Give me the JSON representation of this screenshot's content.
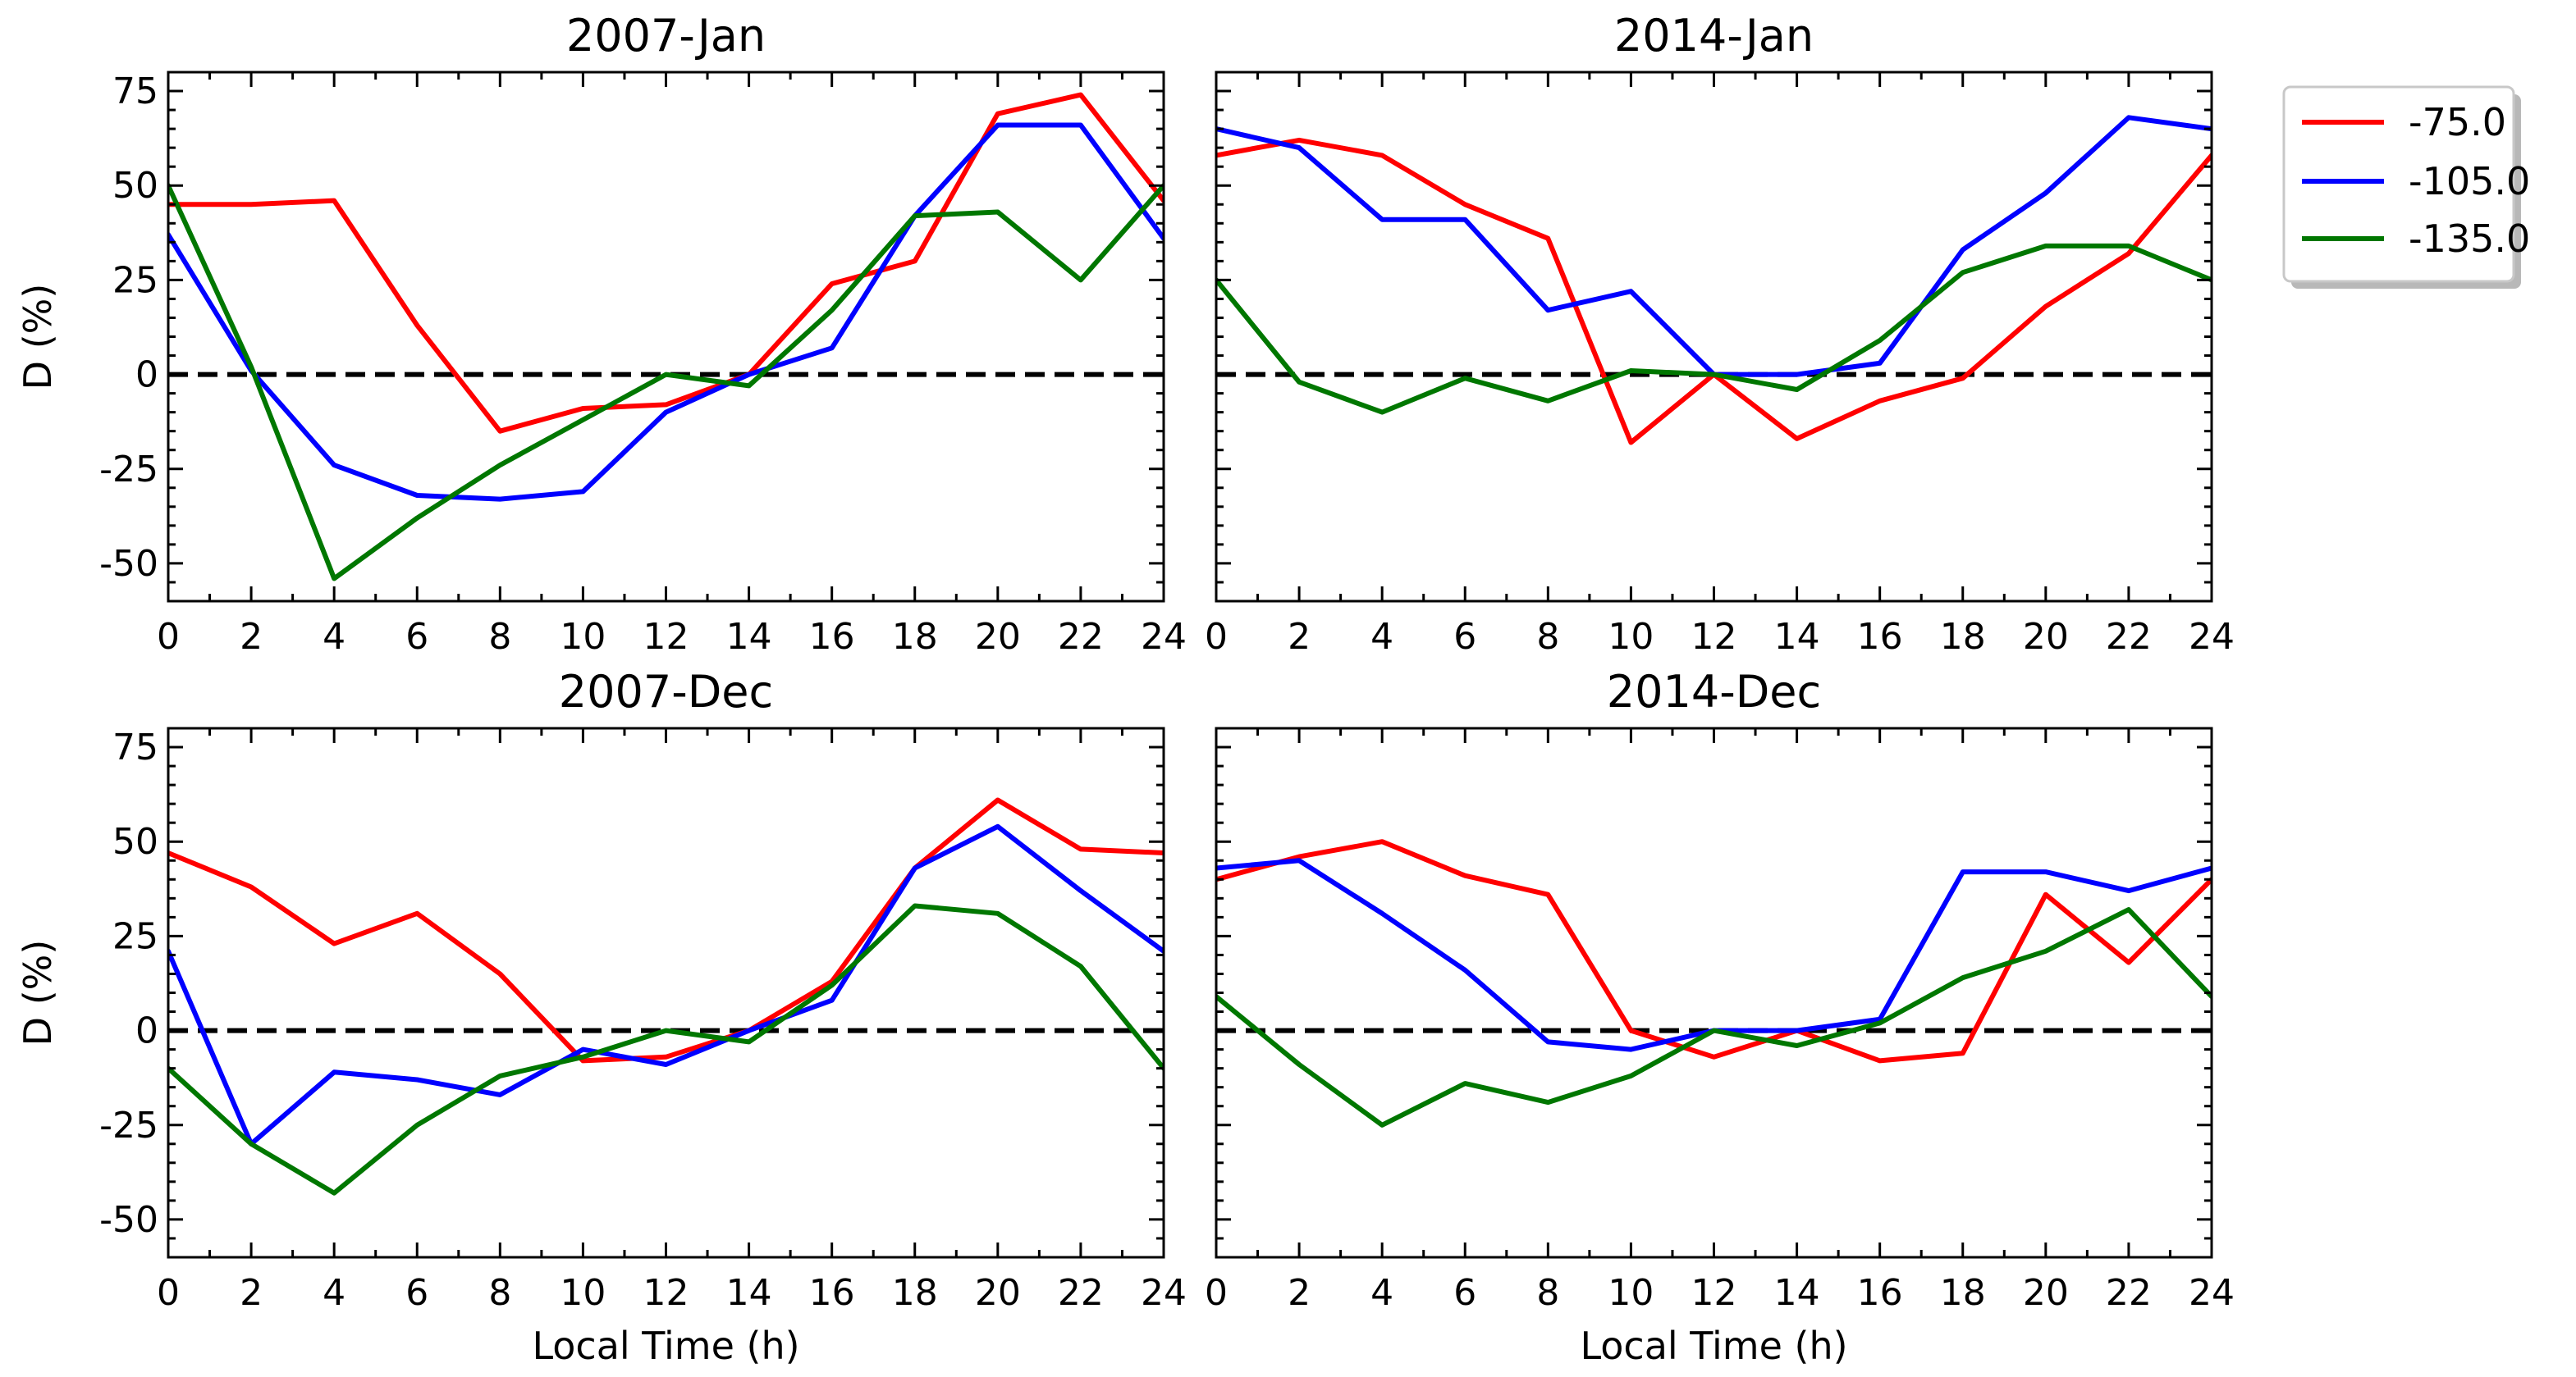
{
  "chart_data": [
    {
      "type": "line",
      "title": "2007-Jan",
      "xlabel": "",
      "ylabel": "D (%)",
      "xlim": [
        0,
        24
      ],
      "ylim": [
        -60,
        80
      ],
      "x": [
        0,
        2,
        4,
        6,
        8,
        10,
        12,
        14,
        16,
        18,
        20,
        22,
        24
      ],
      "series": [
        {
          "name": "-75.0",
          "color": "#ff0000",
          "values": [
            45,
            45,
            46,
            13,
            -15,
            -9,
            -8,
            0,
            24,
            30,
            69,
            74,
            46
          ]
        },
        {
          "name": "-105.0",
          "color": "#0000ff",
          "values": [
            37,
            1,
            -24,
            -32,
            -33,
            -31,
            -10,
            0,
            7,
            42,
            66,
            66,
            36
          ]
        },
        {
          "name": "-135.0",
          "color": "#007700",
          "values": [
            50,
            2,
            -54,
            -38,
            -24,
            -12,
            0,
            -3,
            17,
            42,
            43,
            25,
            50
          ]
        }
      ]
    },
    {
      "type": "line",
      "title": "2014-Jan",
      "xlabel": "",
      "ylabel": "",
      "xlim": [
        0,
        24
      ],
      "ylim": [
        -60,
        80
      ],
      "x": [
        0,
        2,
        4,
        6,
        8,
        10,
        12,
        14,
        16,
        18,
        20,
        22,
        24
      ],
      "series": [
        {
          "name": "-75.0",
          "color": "#ff0000",
          "values": [
            58,
            62,
            58,
            45,
            36,
            -18,
            0,
            -17,
            -7,
            -1,
            18,
            32,
            58
          ]
        },
        {
          "name": "-105.0",
          "color": "#0000ff",
          "values": [
            65,
            60,
            41,
            41,
            17,
            22,
            0,
            0,
            3,
            33,
            48,
            68,
            65
          ]
        },
        {
          "name": "-135.0",
          "color": "#007700",
          "values": [
            25,
            -2,
            -10,
            -1,
            -7,
            1,
            0,
            -4,
            9,
            27,
            34,
            34,
            25
          ]
        }
      ]
    },
    {
      "type": "line",
      "title": "2007-Dec",
      "xlabel": "Local Time (h)",
      "ylabel": "D (%)",
      "xlim": [
        0,
        24
      ],
      "ylim": [
        -60,
        80
      ],
      "x": [
        0,
        2,
        4,
        6,
        8,
        10,
        12,
        14,
        16,
        18,
        20,
        22,
        24
      ],
      "series": [
        {
          "name": "-75.0",
          "color": "#ff0000",
          "values": [
            47,
            38,
            23,
            31,
            15,
            -8,
            -7,
            0,
            13,
            43,
            61,
            48,
            47
          ]
        },
        {
          "name": "-105.0",
          "color": "#0000ff",
          "values": [
            21,
            -30,
            -11,
            -13,
            -17,
            -5,
            -9,
            0,
            8,
            43,
            54,
            37,
            21
          ]
        },
        {
          "name": "-135.0",
          "color": "#007700",
          "values": [
            -10,
            -30,
            -43,
            -25,
            -12,
            -7,
            0,
            -3,
            12,
            33,
            31,
            17,
            -10
          ]
        }
      ]
    },
    {
      "type": "line",
      "title": "2014-Dec",
      "xlabel": "Local Time (h)",
      "ylabel": "",
      "xlim": [
        0,
        24
      ],
      "ylim": [
        -60,
        80
      ],
      "x": [
        0,
        2,
        4,
        6,
        8,
        10,
        12,
        14,
        16,
        18,
        20,
        22,
        24
      ],
      "series": [
        {
          "name": "-75.0",
          "color": "#ff0000",
          "values": [
            40,
            46,
            50,
            41,
            36,
            0,
            -7,
            0,
            -8,
            -6,
            36,
            18,
            40
          ]
        },
        {
          "name": "-105.0",
          "color": "#0000ff",
          "values": [
            43,
            45,
            31,
            16,
            -3,
            -5,
            0,
            0,
            3,
            42,
            42,
            37,
            43
          ]
        },
        {
          "name": "-135.0",
          "color": "#007700",
          "values": [
            9,
            -9,
            -25,
            -14,
            -19,
            -12,
            0,
            -4,
            2,
            14,
            21,
            32,
            9
          ]
        }
      ]
    }
  ],
  "xticks": [
    0,
    2,
    4,
    6,
    8,
    10,
    12,
    14,
    16,
    18,
    20,
    22,
    24
  ],
  "yticks": [
    -50,
    -25,
    0,
    25,
    50,
    75
  ],
  "reference_line": {
    "y": 0,
    "style": "dashed",
    "color": "#000000"
  },
  "legend": {
    "placement": "upper-right-outside",
    "entries": [
      {
        "label": "-75.0",
        "color": "#ff0000"
      },
      {
        "label": "-105.0",
        "color": "#0000ff"
      },
      {
        "label": "-135.0",
        "color": "#007700"
      }
    ]
  }
}
